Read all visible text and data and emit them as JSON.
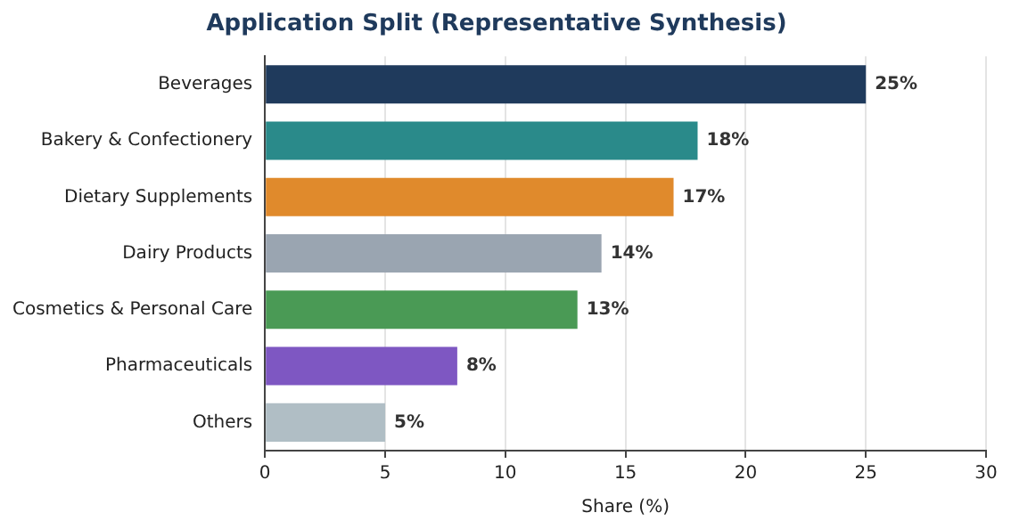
{
  "chart_data": {
    "type": "bar",
    "orientation": "horizontal",
    "title": "Application Split (Representative Synthesis)",
    "xlabel": "Share (%)",
    "categories": [
      "Beverages",
      "Bakery & Confectionery",
      "Dietary Supplements",
      "Dairy Products",
      "Cosmetics & Personal Care",
      "Pharmaceuticals",
      "Others"
    ],
    "values": [
      25,
      18,
      17,
      14,
      13,
      8,
      5
    ],
    "colors": [
      "#1f3a5c",
      "#2a8a8a",
      "#e08a2c",
      "#9aa5b1",
      "#4a9a55",
      "#7e57c2",
      "#b0bec5"
    ],
    "value_labels": [
      "25%",
      "18%",
      "17%",
      "14%",
      "13%",
      "8%",
      "5%"
    ],
    "xlim": [
      0,
      30
    ],
    "xticks": [
      0,
      5,
      10,
      15,
      20,
      25,
      30
    ],
    "grid": "x",
    "legend": false
  }
}
